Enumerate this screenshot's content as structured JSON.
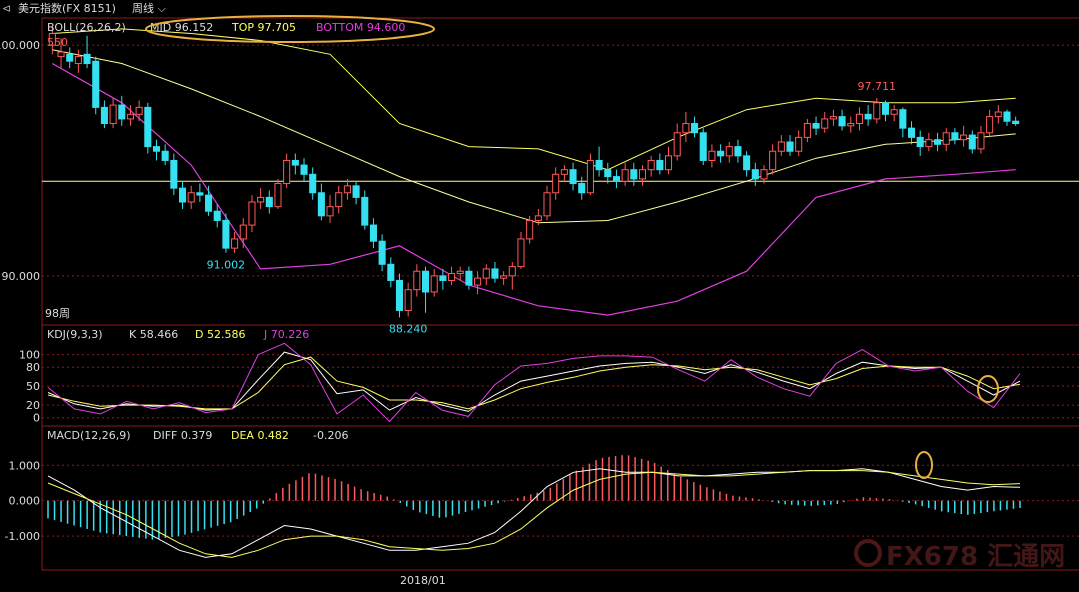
{
  "window": {
    "title": "美元指数(FX 8151)",
    "period": "周线",
    "chevron": "chevron-down-icon",
    "collapse_icon": "collapse-icon"
  },
  "colors": {
    "up": "#ff5a5a",
    "down": "#35e0f0",
    "mid": "#ffff99",
    "top": "#ffff60",
    "bottom": "#e040e0",
    "k": "#ffffff",
    "d": "#ffff60",
    "j": "#e040e0",
    "grid": "#8b1a1a",
    "annotation": "#e8b040",
    "watermark": "#7a2a2a"
  },
  "panels": {
    "boll": {
      "label": "BOLL(26,26,2)",
      "mid": "MID 96.152",
      "top": "TOP 97.705",
      "bottom": "BOTTOM 94.600",
      "extra": "550",
      "weeks": "98周"
    },
    "kdj": {
      "label": "KDJ(9,3,3)",
      "k": "K 58.466",
      "d": "D 52.586",
      "j": "J 70.226"
    },
    "macd": {
      "label": "MACD(12,26,9)",
      "diff": "DIFF 0.379",
      "dea": "DEA 0.482",
      "macd": "-0.206"
    }
  },
  "x_label": "2018/01",
  "watermark": "FX678 汇通网",
  "chart_data": [
    {
      "type": "candlestick",
      "title": "美元指数(FX 8151) 周线",
      "ylim": [
        88,
        101
      ],
      "ticks": [
        "100.000",
        "90.000"
      ],
      "annotations": [
        {
          "text": "91.002",
          "value": 91.002
        },
        {
          "text": "88.240",
          "value": 88.24
        },
        {
          "text": "97.711",
          "value": 97.711
        }
      ],
      "current_level": 94.1,
      "candles": [
        [
          100.0,
          100.5,
          100.8,
          99.6
        ],
        [
          99.5,
          99.7,
          100.3,
          99.0
        ],
        [
          99.6,
          99.3,
          99.9,
          99.0
        ],
        [
          99.2,
          99.5,
          99.8,
          98.8
        ],
        [
          99.6,
          99.2,
          100.4,
          99.0
        ],
        [
          99.3,
          97.3,
          99.5,
          97.0
        ],
        [
          97.3,
          96.6,
          97.6,
          96.4
        ],
        [
          96.6,
          97.4,
          97.7,
          96.4
        ],
        [
          97.4,
          96.8,
          97.8,
          96.5
        ],
        [
          96.8,
          97.0,
          97.4,
          96.5
        ],
        [
          97.0,
          97.3,
          97.6,
          96.7
        ],
        [
          97.3,
          95.6,
          97.5,
          95.3
        ],
        [
          95.6,
          95.4,
          95.9,
          95.0
        ],
        [
          95.4,
          95.0,
          95.7,
          94.8
        ],
        [
          95.0,
          93.8,
          95.3,
          93.5
        ],
        [
          93.8,
          93.2,
          94.1,
          92.9
        ],
        [
          93.2,
          93.6,
          93.9,
          92.9
        ],
        [
          93.6,
          93.5,
          94.0,
          93.2
        ],
        [
          93.5,
          92.8,
          93.9,
          92.6
        ],
        [
          92.8,
          92.4,
          93.1,
          92.1
        ],
        [
          92.4,
          91.2,
          92.7,
          91.0
        ],
        [
          91.2,
          91.6,
          91.9,
          91.0
        ],
        [
          91.6,
          92.2,
          92.5,
          91.2
        ],
        [
          92.2,
          93.2,
          93.5,
          91.9
        ],
        [
          93.2,
          93.4,
          93.8,
          92.9
        ],
        [
          93.4,
          93.0,
          93.7,
          92.7
        ],
        [
          93.0,
          94.0,
          94.2,
          92.9
        ],
        [
          94.0,
          95.0,
          95.3,
          93.8
        ],
        [
          95.0,
          94.8,
          95.3,
          94.4
        ],
        [
          94.8,
          94.4,
          95.1,
          94.1
        ],
        [
          94.4,
          93.6,
          94.7,
          93.3
        ],
        [
          93.6,
          92.6,
          94.0,
          92.4
        ],
        [
          92.6,
          93.0,
          93.5,
          92.3
        ],
        [
          93.0,
          93.6,
          93.9,
          92.7
        ],
        [
          93.6,
          93.9,
          94.2,
          93.3
        ],
        [
          93.9,
          93.4,
          94.1,
          93.1
        ],
        [
          93.4,
          92.2,
          93.7,
          92.0
        ],
        [
          92.2,
          91.5,
          92.5,
          91.2
        ],
        [
          91.5,
          90.5,
          91.8,
          90.2
        ],
        [
          90.5,
          89.8,
          90.8,
          89.5
        ],
        [
          89.8,
          88.5,
          90.1,
          88.2
        ],
        [
          88.5,
          89.4,
          89.7,
          88.24
        ],
        [
          89.4,
          90.2,
          90.5,
          89.1
        ],
        [
          90.2,
          89.3,
          90.4,
          88.4
        ],
        [
          89.3,
          90.0,
          90.3,
          89.1
        ],
        [
          90.0,
          89.8,
          90.3,
          89.4
        ],
        [
          89.8,
          90.1,
          90.4,
          89.6
        ],
        [
          90.1,
          90.2,
          90.4,
          89.8
        ],
        [
          90.2,
          89.6,
          90.4,
          89.4
        ],
        [
          89.6,
          89.9,
          90.2,
          89.2
        ],
        [
          89.9,
          90.3,
          90.5,
          89.6
        ],
        [
          90.3,
          89.9,
          90.6,
          89.7
        ],
        [
          89.9,
          90.0,
          90.2,
          89.6
        ],
        [
          90.0,
          90.4,
          90.6,
          89.4
        ],
        [
          90.4,
          91.6,
          91.9,
          90.3
        ],
        [
          91.6,
          92.4,
          92.6,
          91.4
        ],
        [
          92.4,
          92.6,
          92.9,
          92.2
        ],
        [
          92.6,
          93.6,
          93.9,
          92.4
        ],
        [
          93.6,
          94.4,
          94.7,
          93.3
        ],
        [
          94.4,
          94.6,
          94.8,
          94.1
        ],
        [
          94.6,
          94.0,
          94.9,
          93.7
        ],
        [
          94.0,
          93.6,
          94.3,
          93.3
        ],
        [
          93.6,
          95.0,
          95.3,
          93.5
        ],
        [
          95.0,
          94.6,
          95.6,
          94.3
        ],
        [
          94.6,
          94.3,
          94.9,
          94.0
        ],
        [
          94.3,
          94.1,
          94.6,
          93.8
        ],
        [
          94.1,
          94.6,
          94.9,
          93.9
        ],
        [
          94.6,
          94.2,
          94.9,
          93.9
        ],
        [
          94.2,
          94.6,
          94.8,
          93.9
        ],
        [
          94.6,
          95.0,
          95.2,
          94.3
        ],
        [
          95.0,
          94.6,
          95.3,
          94.4
        ],
        [
          94.6,
          95.2,
          95.6,
          94.4
        ],
        [
          95.2,
          96.2,
          96.6,
          95.0
        ],
        [
          96.2,
          96.6,
          97.1,
          95.8
        ],
        [
          96.6,
          96.2,
          96.9,
          96.0
        ],
        [
          96.2,
          95.0,
          96.4,
          94.8
        ],
        [
          95.0,
          95.4,
          95.7,
          94.7
        ],
        [
          95.4,
          95.2,
          95.7,
          94.9
        ],
        [
          95.2,
          95.6,
          95.8,
          94.9
        ],
        [
          95.6,
          95.2,
          95.9,
          94.9
        ],
        [
          95.2,
          94.6,
          95.4,
          94.3
        ],
        [
          94.6,
          94.2,
          94.9,
          93.9
        ],
        [
          94.2,
          94.6,
          94.8,
          94.0
        ],
        [
          94.6,
          95.4,
          95.7,
          94.4
        ],
        [
          95.4,
          95.8,
          96.1,
          95.2
        ],
        [
          95.8,
          95.4,
          96.1,
          95.2
        ],
        [
          95.4,
          96.0,
          96.3,
          95.2
        ],
        [
          96.0,
          96.6,
          96.8,
          95.8
        ],
        [
          96.6,
          96.4,
          96.9,
          96.1
        ],
        [
          96.4,
          96.8,
          97.1,
          96.2
        ],
        [
          96.8,
          96.9,
          97.2,
          96.5
        ],
        [
          96.9,
          96.5,
          97.2,
          96.3
        ],
        [
          96.5,
          96.6,
          96.9,
          96.2
        ],
        [
          96.6,
          97.0,
          97.3,
          96.3
        ],
        [
          97.0,
          96.8,
          97.4,
          96.5
        ],
        [
          96.8,
          97.5,
          97.711,
          96.6
        ],
        [
          97.5,
          97.0,
          97.6,
          96.7
        ],
        [
          97.0,
          97.2,
          97.4,
          96.7
        ],
        [
          97.2,
          96.4,
          97.3,
          96.0
        ],
        [
          96.4,
          96.0,
          96.7,
          95.7
        ],
        [
          96.0,
          95.6,
          96.3,
          95.2
        ],
        [
          95.6,
          95.9,
          96.2,
          95.4
        ],
        [
          95.9,
          95.7,
          96.2,
          95.4
        ],
        [
          95.7,
          96.2,
          96.4,
          95.4
        ],
        [
          96.2,
          95.9,
          96.4,
          95.7
        ],
        [
          95.9,
          96.1,
          96.5,
          95.6
        ],
        [
          96.1,
          95.5,
          96.3,
          95.3
        ],
        [
          95.5,
          96.2,
          96.5,
          95.3
        ],
        [
          96.2,
          96.9,
          97.2,
          96.0
        ],
        [
          96.9,
          97.1,
          97.4,
          96.6
        ],
        [
          97.1,
          96.7,
          97.2,
          96.5
        ],
        [
          96.7,
          96.6,
          96.9,
          96.5
        ]
      ],
      "bands_anchor_index": [
        0,
        8,
        16,
        24,
        32,
        40,
        48,
        56,
        64,
        72,
        80,
        88,
        96,
        104,
        112
      ],
      "mid_band": [
        99.8,
        99.2,
        98.1,
        96.9,
        95.6,
        94.3,
        93.2,
        92.3,
        92.4,
        93.2,
        94.1,
        95.1,
        95.7,
        95.9,
        96.15
      ],
      "top_band": [
        100.5,
        100.7,
        100.5,
        100.2,
        99.6,
        96.6,
        95.6,
        95.5,
        94.6,
        96.0,
        97.2,
        97.7,
        97.5,
        97.5,
        97.7
      ],
      "bottom_band": [
        99.2,
        97.5,
        94.8,
        90.3,
        90.5,
        91.3,
        89.6,
        88.7,
        88.3,
        88.9,
        90.2,
        93.4,
        94.2,
        94.4,
        94.6
      ]
    },
    {
      "type": "line",
      "title": "KDJ(9,3,3)",
      "ylim": [
        -10,
        120
      ],
      "ticks": [
        "100",
        "80",
        "50",
        "20",
        "0"
      ],
      "series": [
        {
          "name": "K",
          "values": [
            40,
            22,
            14,
            22,
            18,
            20,
            12,
            14,
            60,
            104,
            92,
            38,
            44,
            12,
            32,
            20,
            10,
            36,
            58,
            66,
            74,
            82,
            86,
            88,
            80,
            70,
            84,
            72,
            58,
            46,
            70,
            88,
            82,
            78,
            80,
            58,
            36,
            58
          ]
        },
        {
          "name": "D",
          "values": [
            36,
            26,
            18,
            20,
            20,
            18,
            14,
            14,
            40,
            84,
            96,
            58,
            48,
            28,
            28,
            24,
            14,
            28,
            46,
            56,
            64,
            74,
            80,
            84,
            82,
            76,
            80,
            76,
            64,
            52,
            62,
            78,
            82,
            80,
            80,
            66,
            46,
            53
          ]
        },
        {
          "name": "J",
          "values": [
            48,
            14,
            6,
            26,
            14,
            24,
            8,
            14,
            100,
            118,
            84,
            6,
            36,
            -6,
            40,
            12,
            2,
            52,
            82,
            86,
            94,
            98,
            98,
            96,
            76,
            58,
            92,
            64,
            46,
            34,
            86,
            108,
            82,
            74,
            80,
            42,
            16,
            70
          ]
        }
      ]
    },
    {
      "type": "bar",
      "title": "MACD(12,26,9)",
      "ylim": [
        -1.9,
        1.6
      ],
      "ticks": [
        "1.000",
        "0.000",
        "-1.000"
      ],
      "macd": [
        -0.5,
        -0.7,
        -0.9,
        -1.0,
        -1.1,
        -1.0,
        -0.8,
        -0.6,
        -0.2,
        0.4,
        0.8,
        0.6,
        0.3,
        0.1,
        -0.3,
        -0.5,
        -0.3,
        -0.1,
        0.1,
        0.3,
        0.8,
        1.2,
        1.3,
        1.1,
        0.7,
        0.4,
        0.15,
        0.05,
        -0.1,
        -0.15,
        -0.1,
        0.1,
        0.05,
        -0.1,
        -0.3,
        -0.4,
        -0.3,
        -0.206
      ],
      "series": [
        {
          "name": "DIFF",
          "values": [
            0.7,
            0.3,
            -0.2,
            -0.6,
            -1.0,
            -1.4,
            -1.6,
            -1.5,
            -1.1,
            -0.7,
            -0.8,
            -1.0,
            -1.2,
            -1.4,
            -1.4,
            -1.3,
            -1.2,
            -0.9,
            -0.3,
            0.4,
            0.8,
            0.9,
            0.8,
            0.8,
            0.7,
            0.7,
            0.75,
            0.8,
            0.8,
            0.85,
            0.85,
            0.9,
            0.8,
            0.6,
            0.4,
            0.3,
            0.4,
            0.379
          ]
        },
        {
          "name": "DEA",
          "values": [
            0.5,
            0.2,
            -0.1,
            -0.4,
            -0.8,
            -1.2,
            -1.5,
            -1.6,
            -1.4,
            -1.1,
            -1.0,
            -1.0,
            -1.1,
            -1.3,
            -1.35,
            -1.4,
            -1.35,
            -1.2,
            -0.8,
            -0.2,
            0.3,
            0.6,
            0.75,
            0.8,
            0.75,
            0.7,
            0.7,
            0.75,
            0.8,
            0.85,
            0.85,
            0.85,
            0.8,
            0.7,
            0.6,
            0.5,
            0.45,
            0.482
          ]
        }
      ]
    }
  ]
}
